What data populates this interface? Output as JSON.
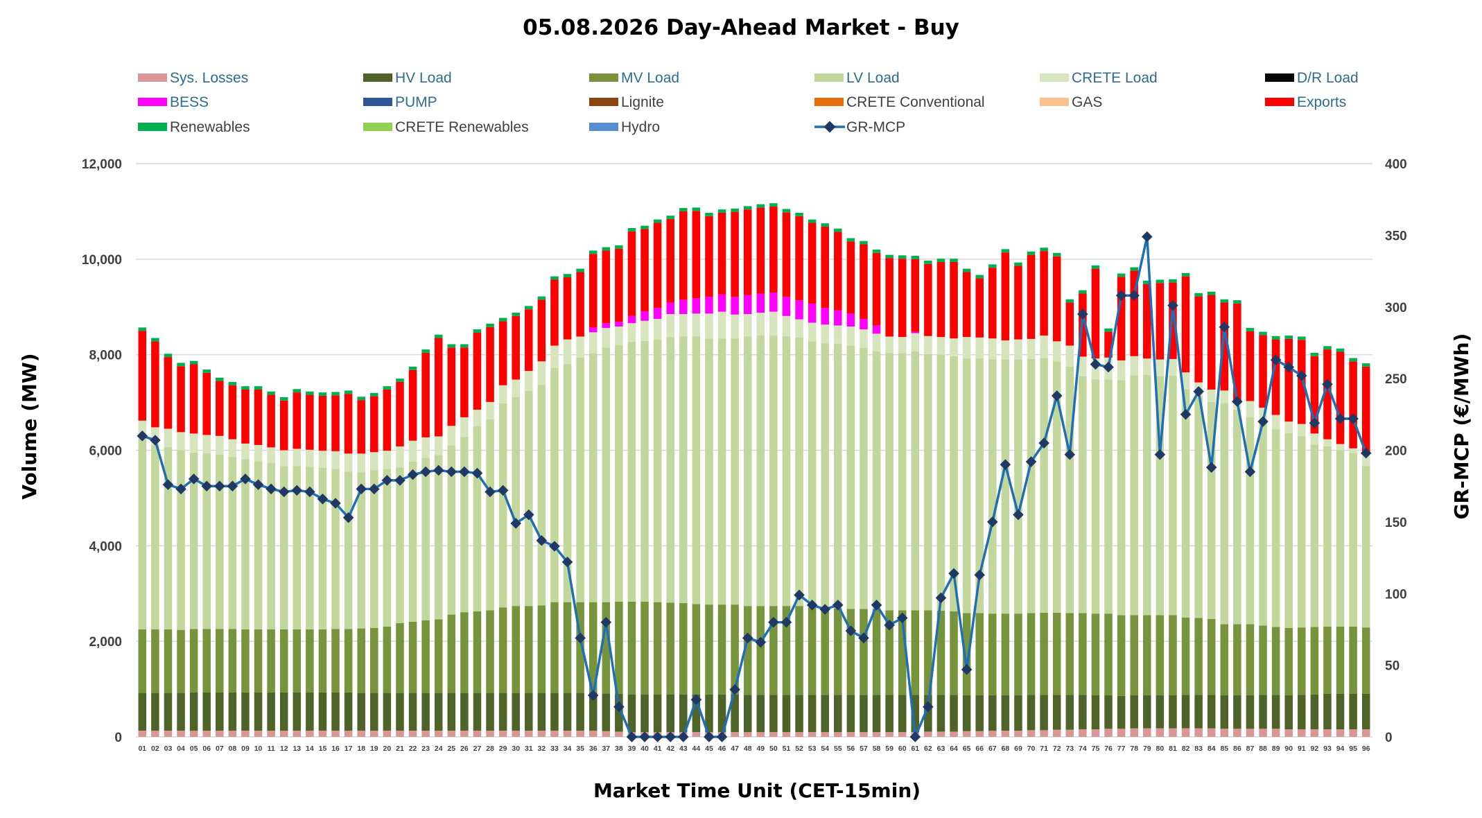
{
  "chart_data": {
    "type": "bar",
    "stacked": true,
    "title": "05.08.2026  Day-Ahead Market - Buy",
    "xlabel": "Market Time Unit (CET-15min)",
    "ylabel": "Volume (MW)",
    "y2label": "GR-MCP (€/MWh)",
    "ylim": [
      0,
      12000
    ],
    "y2lim": [
      0,
      400
    ],
    "yticks": [
      "0",
      "2,000",
      "4,000",
      "6,000",
      "8,000",
      "10,000",
      "12,000"
    ],
    "y2ticks": [
      "0",
      "50",
      "100",
      "150",
      "200",
      "250",
      "300",
      "350",
      "400"
    ],
    "categories": [
      "01",
      "02",
      "03",
      "04",
      "05",
      "06",
      "07",
      "08",
      "09",
      "10",
      "11",
      "12",
      "13",
      "14",
      "15",
      "16",
      "17",
      "18",
      "19",
      "20",
      "21",
      "22",
      "23",
      "24",
      "25",
      "26",
      "27",
      "28",
      "29",
      "30",
      "31",
      "32",
      "33",
      "34",
      "35",
      "36",
      "37",
      "38",
      "39",
      "40",
      "41",
      "42",
      "43",
      "44",
      "45",
      "46",
      "47",
      "48",
      "49",
      "50",
      "51",
      "52",
      "53",
      "54",
      "55",
      "56",
      "57",
      "58",
      "59",
      "60",
      "61",
      "62",
      "63",
      "64",
      "65",
      "66",
      "67",
      "68",
      "69",
      "70",
      "71",
      "72",
      "73",
      "74",
      "75",
      "76",
      "77",
      "78",
      "79",
      "80",
      "81",
      "82",
      "83",
      "84",
      "85",
      "86",
      "87",
      "88",
      "89",
      "90",
      "91",
      "92",
      "93",
      "94",
      "95",
      "96"
    ],
    "legend": [
      {
        "name": "Sys. Losses",
        "color": "#da9694"
      },
      {
        "name": "HV Load",
        "color": "#4f6228"
      },
      {
        "name": "MV Load",
        "color": "#77933c"
      },
      {
        "name": "LV Load",
        "color": "#c3d69b"
      },
      {
        "name": "CRETE Load",
        "color": "#d7e4bd"
      },
      {
        "name": "D/R Load",
        "color": "#000000"
      },
      {
        "name": "BESS",
        "color": "#ff00ff"
      },
      {
        "name": "PUMP",
        "color": "#2e5597"
      },
      {
        "name": "Lignite",
        "color": "#8b4513"
      },
      {
        "name": "CRETE Conventional",
        "color": "#e46c0a"
      },
      {
        "name": "GAS",
        "color": "#fac090"
      },
      {
        "name": "Exports",
        "color": "#ff0000"
      },
      {
        "name": "Renewables",
        "color": "#00b050"
      },
      {
        "name": "CRETE Renewables",
        "color": "#92d050"
      },
      {
        "name": "Hydro",
        "color": "#558ed5"
      },
      {
        "name": "GR-MCP",
        "color": "#1f6fb4",
        "marker": "#1f3864",
        "kind": "line"
      }
    ],
    "series": [
      {
        "name": "Sys. Losses",
        "color": "#da9694",
        "values": [
          130,
          130,
          130,
          130,
          130,
          130,
          130,
          130,
          130,
          130,
          130,
          130,
          130,
          130,
          130,
          130,
          130,
          130,
          130,
          130,
          130,
          130,
          130,
          130,
          130,
          130,
          130,
          130,
          130,
          130,
          130,
          130,
          130,
          130,
          130,
          130,
          120,
          110,
          100,
          100,
          100,
          100,
          100,
          100,
          100,
          100,
          100,
          100,
          100,
          100,
          100,
          100,
          100,
          100,
          100,
          100,
          100,
          100,
          100,
          100,
          100,
          110,
          110,
          110,
          120,
          120,
          130,
          130,
          130,
          140,
          140,
          150,
          150,
          160,
          160,
          170,
          170,
          180,
          180,
          180,
          180,
          180,
          180,
          180,
          170,
          170,
          170,
          170,
          170,
          160,
          160,
          160,
          160,
          160,
          160,
          160
        ]
      },
      {
        "name": "HV Load",
        "color": "#4f6228",
        "values": [
          790,
          790,
          790,
          790,
          800,
          800,
          800,
          800,
          800,
          800,
          800,
          800,
          800,
          800,
          800,
          800,
          800,
          790,
          790,
          790,
          790,
          790,
          790,
          790,
          790,
          790,
          790,
          790,
          790,
          790,
          790,
          790,
          790,
          790,
          790,
          790,
          790,
          790,
          790,
          790,
          790,
          790,
          790,
          790,
          790,
          790,
          790,
          780,
          780,
          780,
          780,
          780,
          780,
          780,
          780,
          780,
          780,
          780,
          780,
          780,
          780,
          770,
          770,
          770,
          750,
          750,
          740,
          740,
          740,
          740,
          740,
          730,
          730,
          720,
          710,
          700,
          690,
          690,
          690,
          690,
          690,
          700,
          700,
          700,
          700,
          700,
          700,
          710,
          710,
          710,
          720,
          730,
          740,
          740,
          740,
          740
        ]
      },
      {
        "name": "MV Load",
        "color": "#77933c",
        "values": [
          1330,
          1330,
          1330,
          1320,
          1330,
          1330,
          1330,
          1330,
          1320,
          1320,
          1320,
          1320,
          1320,
          1320,
          1320,
          1330,
          1330,
          1350,
          1360,
          1390,
          1460,
          1490,
          1520,
          1540,
          1640,
          1690,
          1710,
          1730,
          1790,
          1820,
          1820,
          1830,
          1900,
          1900,
          1900,
          1900,
          1910,
          1930,
          1940,
          1940,
          1930,
          1920,
          1910,
          1890,
          1880,
          1880,
          1880,
          1860,
          1860,
          1860,
          1860,
          1860,
          1830,
          1820,
          1810,
          1800,
          1800,
          1790,
          1770,
          1770,
          1770,
          1770,
          1760,
          1750,
          1720,
          1720,
          1710,
          1710,
          1710,
          1710,
          1720,
          1720,
          1710,
          1710,
          1710,
          1710,
          1690,
          1680,
          1680,
          1680,
          1680,
          1620,
          1610,
          1590,
          1490,
          1490,
          1490,
          1450,
          1420,
          1410,
          1410,
          1410,
          1410,
          1410,
          1410,
          1390
        ]
      },
      {
        "name": "LV Load",
        "color": "#c3d69b",
        "values": [
          3990,
          3850,
          3820,
          3760,
          3690,
          3680,
          3650,
          3600,
          3560,
          3520,
          3480,
          3420,
          3420,
          3400,
          3380,
          3350,
          3290,
          3270,
          3300,
          3300,
          3260,
          3350,
          3400,
          3440,
          3540,
          3670,
          3870,
          4000,
          4270,
          4370,
          4500,
          4620,
          4900,
          4990,
          5120,
          5210,
          5330,
          5370,
          5440,
          5460,
          5500,
          5560,
          5580,
          5600,
          5570,
          5570,
          5570,
          5640,
          5660,
          5660,
          5650,
          5620,
          5570,
          5540,
          5540,
          5510,
          5460,
          5400,
          5390,
          5380,
          5420,
          5360,
          5360,
          5340,
          5330,
          5330,
          5320,
          5320,
          5320,
          5320,
          5330,
          5260,
          5160,
          4960,
          4900,
          4900,
          4920,
          5020,
          5030,
          5000,
          5010,
          4780,
          4630,
          4540,
          4630,
          4490,
          4330,
          4220,
          4140,
          4080,
          4000,
          3820,
          3770,
          3690,
          3630,
          3380
        ]
      },
      {
        "name": "CRETE Load",
        "color": "#d7e4bd",
        "values": [
          380,
          380,
          380,
          380,
          400,
          380,
          390,
          370,
          330,
          340,
          330,
          330,
          360,
          360,
          360,
          370,
          380,
          390,
          380,
          380,
          440,
          440,
          430,
          390,
          410,
          410,
          350,
          360,
          380,
          370,
          420,
          490,
          470,
          510,
          440,
          440,
          410,
          390,
          390,
          420,
          430,
          480,
          470,
          480,
          520,
          560,
          500,
          470,
          480,
          500,
          420,
          380,
          390,
          390,
          380,
          400,
          390,
          370,
          340,
          340,
          380,
          380,
          370,
          370,
          450,
          440,
          440,
          400,
          420,
          420,
          470,
          420,
          440,
          410,
          440,
          460,
          410,
          400,
          340,
          350,
          350,
          350,
          300,
          260,
          260,
          190,
          340,
          340,
          300,
          240,
          260,
          230,
          150,
          130,
          100,
          240
        ]
      },
      {
        "name": "BESS",
        "color": "#ff00ff",
        "values": [
          0,
          0,
          0,
          0,
          0,
          0,
          0,
          0,
          0,
          0,
          0,
          0,
          0,
          0,
          0,
          0,
          0,
          0,
          0,
          0,
          0,
          0,
          0,
          0,
          0,
          0,
          0,
          0,
          0,
          0,
          0,
          0,
          0,
          0,
          0,
          100,
          100,
          100,
          150,
          200,
          230,
          240,
          300,
          320,
          350,
          360,
          370,
          400,
          400,
          400,
          400,
          400,
          400,
          350,
          320,
          270,
          220,
          170,
          0,
          0,
          30,
          0,
          0,
          0,
          0,
          0,
          0,
          0,
          0,
          0,
          0,
          0,
          0,
          0,
          0,
          0,
          0,
          0,
          0,
          0,
          0,
          0,
          0,
          0,
          0,
          0,
          0,
          0,
          0,
          0,
          0,
          0,
          0,
          0,
          0,
          0
        ]
      },
      {
        "name": "Exports",
        "color": "#ff0000",
        "values": [
          1880,
          1800,
          1500,
          1380,
          1450,
          1300,
          1150,
          1130,
          1130,
          1160,
          1100,
          1040,
          1180,
          1150,
          1150,
          1170,
          1250,
          1120,
          1170,
          1280,
          1350,
          1480,
          1770,
          2060,
          1640,
          1460,
          1610,
          1570,
          1340,
          1330,
          1290,
          1290,
          1380,
          1300,
          1350,
          1540,
          1520,
          1530,
          1770,
          1720,
          1780,
          1750,
          1850,
          1830,
          1690,
          1710,
          1780,
          1790,
          1800,
          1800,
          1770,
          1760,
          1690,
          1700,
          1640,
          1510,
          1560,
          1520,
          1640,
          1640,
          1520,
          1510,
          1570,
          1600,
          1360,
          1240,
          1480,
          1840,
          1540,
          1760,
          1770,
          1780,
          900,
          1320,
          1880,
          540,
          1750,
          1790,
          1560,
          1600,
          1600,
          2010,
          1800,
          1980,
          1840,
          2030,
          1460,
          1520,
          1580,
          1730,
          1760,
          1620,
          1880,
          1930,
          1820,
          1840
        ]
      },
      {
        "name": "Renewables",
        "color": "#00b050",
        "values": [
          70,
          70,
          70,
          70,
          70,
          70,
          70,
          70,
          70,
          70,
          70,
          70,
          70,
          70,
          70,
          70,
          70,
          70,
          70,
          70,
          70,
          70,
          70,
          70,
          70,
          70,
          70,
          70,
          70,
          70,
          70,
          70,
          70,
          70,
          70,
          70,
          70,
          70,
          70,
          70,
          70,
          70,
          70,
          70,
          70,
          70,
          70,
          70,
          70,
          70,
          70,
          70,
          70,
          70,
          70,
          70,
          70,
          70,
          70,
          70,
          70,
          70,
          70,
          70,
          70,
          70,
          70,
          70,
          70,
          70,
          70,
          70,
          70,
          70,
          70,
          70,
          70,
          70,
          70,
          70,
          70,
          70,
          70,
          70,
          70,
          70,
          70,
          70,
          70,
          70,
          70,
          70,
          70,
          70,
          70,
          70
        ]
      },
      {
        "name": "GR-MCP",
        "kind": "line",
        "color": "#1f6fb4",
        "values": [
          210,
          207,
          176,
          173,
          180,
          175,
          175,
          175,
          180,
          176,
          173,
          171,
          172,
          171,
          166,
          163,
          153,
          173,
          173,
          179,
          179,
          183,
          185,
          186,
          185,
          185,
          184,
          171,
          172,
          149,
          155,
          137,
          133,
          122,
          69,
          29,
          80,
          21,
          0,
          0,
          0,
          0,
          0,
          26,
          0,
          0,
          33,
          69,
          66,
          80,
          80,
          99,
          92,
          89,
          92,
          74,
          69,
          92,
          78,
          83,
          0,
          21,
          97,
          114,
          47,
          113,
          150,
          190,
          155,
          192,
          205,
          238,
          197,
          295,
          260,
          258,
          308,
          308,
          349,
          197,
          301,
          225,
          241,
          188,
          286,
          234,
          185,
          220,
          263,
          258,
          252,
          219,
          246,
          222,
          222,
          198
        ]
      }
    ]
  }
}
